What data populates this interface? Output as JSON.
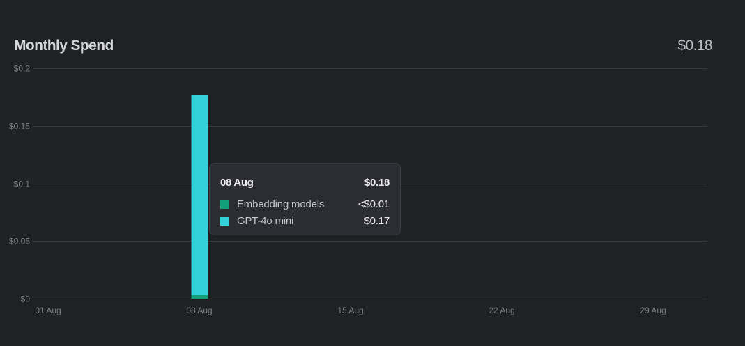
{
  "card": {
    "title": "Monthly Spend",
    "total": "$0.18"
  },
  "colors": {
    "background": "#202123",
    "grid": "#3a3b3f",
    "tick_label": "#7d7f86",
    "embedding": "#12a07a",
    "gpt4o_mini": "#35d1db"
  },
  "tooltip": {
    "date": "08 Aug",
    "total": "$0.18",
    "rows": [
      {
        "name": "Embedding models",
        "value": "<$0.01",
        "color": "#12a07a"
      },
      {
        "name": "GPT-4o mini",
        "value": "$0.17",
        "color": "#35d1db"
      }
    ]
  },
  "chart_data": {
    "type": "bar",
    "stacked": true,
    "title": "Monthly Spend",
    "x_range": [
      1,
      31
    ],
    "x_ticks": [
      {
        "day": 1,
        "label": "01 Aug"
      },
      {
        "day": 8,
        "label": "08 Aug"
      },
      {
        "day": 15,
        "label": "15 Aug"
      },
      {
        "day": 22,
        "label": "22 Aug"
      },
      {
        "day": 29,
        "label": "29 Aug"
      }
    ],
    "y_ticks": [
      {
        "value": 0,
        "label": "$0"
      },
      {
        "value": 0.05,
        "label": "$0.05"
      },
      {
        "value": 0.1,
        "label": "$0.1"
      },
      {
        "value": 0.15,
        "label": "$0.15"
      },
      {
        "value": 0.2,
        "label": "$0.2"
      }
    ],
    "ylim": [
      0,
      0.2
    ],
    "grid": true,
    "series": [
      {
        "name": "Embedding models",
        "color": "#12a07a",
        "points": [
          {
            "day": 8,
            "value": 0.003
          }
        ]
      },
      {
        "name": "GPT-4o mini",
        "color": "#35d1db",
        "points": [
          {
            "day": 8,
            "value": 0.174
          }
        ]
      }
    ]
  }
}
